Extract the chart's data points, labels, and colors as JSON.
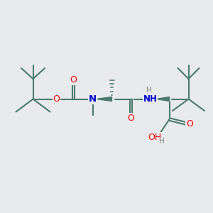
{
  "background_color": "#e8eaeb",
  "bond_color": "#4a7a6a",
  "atom_colors": {
    "O": "#ff0000",
    "N": "#0000cc",
    "H": "#808080",
    "C": "#4a7a6a"
  },
  "bond_width": 1.5,
  "figsize": [
    3.0,
    3.0
  ],
  "dpi": 100
}
